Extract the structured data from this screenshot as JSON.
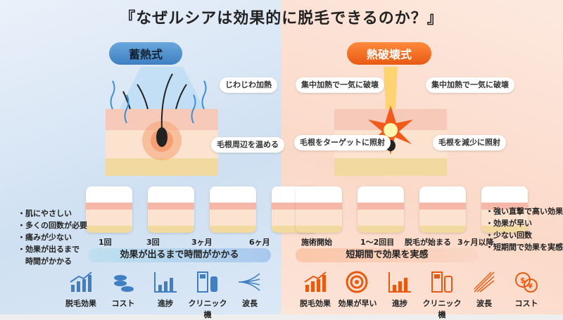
{
  "title": "『なぜルシアは効果的に脱毛できるのか？』",
  "left": {
    "badge": "蓄熱式",
    "color": "#3f7fc2",
    "callouts": [
      "じわじわ加熱",
      "毛根周辺を温める"
    ],
    "steps": [
      "1回",
      "3回",
      "3ヶ月",
      "6ヶ月"
    ],
    "banner": "効果が出るまで時間がかかる",
    "points": [
      "・肌にやさしい",
      "・多くの回数が必要",
      "・痛みが少ない",
      "・効果が出るまで",
      "　時間がかかる"
    ],
    "icons": [
      {
        "icon": "growth-chart-icon",
        "label": "脱毛効果"
      },
      {
        "icon": "coins-icon",
        "label": "コスト"
      },
      {
        "icon": "progress-chart-icon",
        "label": "進捗"
      },
      {
        "icon": "clinic-machine-icon",
        "label": "クリニック機"
      },
      {
        "icon": "wavelength-icon",
        "label": "波長"
      }
    ]
  },
  "right": {
    "badge": "熱破壊式",
    "color": "#e85a12",
    "callouts": [
      "集中加熱で一気に破壊",
      "集中加熱で一気に破壊",
      "毛根をターゲットに照射",
      "毛根を減少に照射"
    ],
    "steps": [
      "施術開始",
      "1〜2回目",
      "脱毛が始まる",
      "3ヶ月以降"
    ],
    "banner": "短期間で効果を実感",
    "points": [
      "・強い直撃で高い効果",
      "・効果が早い",
      "・少ない回数",
      "・短期間で効果を実感"
    ],
    "icons": [
      {
        "icon": "growth-chart-icon",
        "label": "脱毛効果"
      },
      {
        "icon": "target-icon",
        "label": "効果が早い"
      },
      {
        "icon": "progress-chart-icon",
        "label": "進捗"
      },
      {
        "icon": "clinic-machine-icon",
        "label": "クリニック機"
      },
      {
        "icon": "laser-beam-icon",
        "label": "波長"
      },
      {
        "icon": "currency-coins-icon",
        "label": "コスト"
      }
    ]
  }
}
